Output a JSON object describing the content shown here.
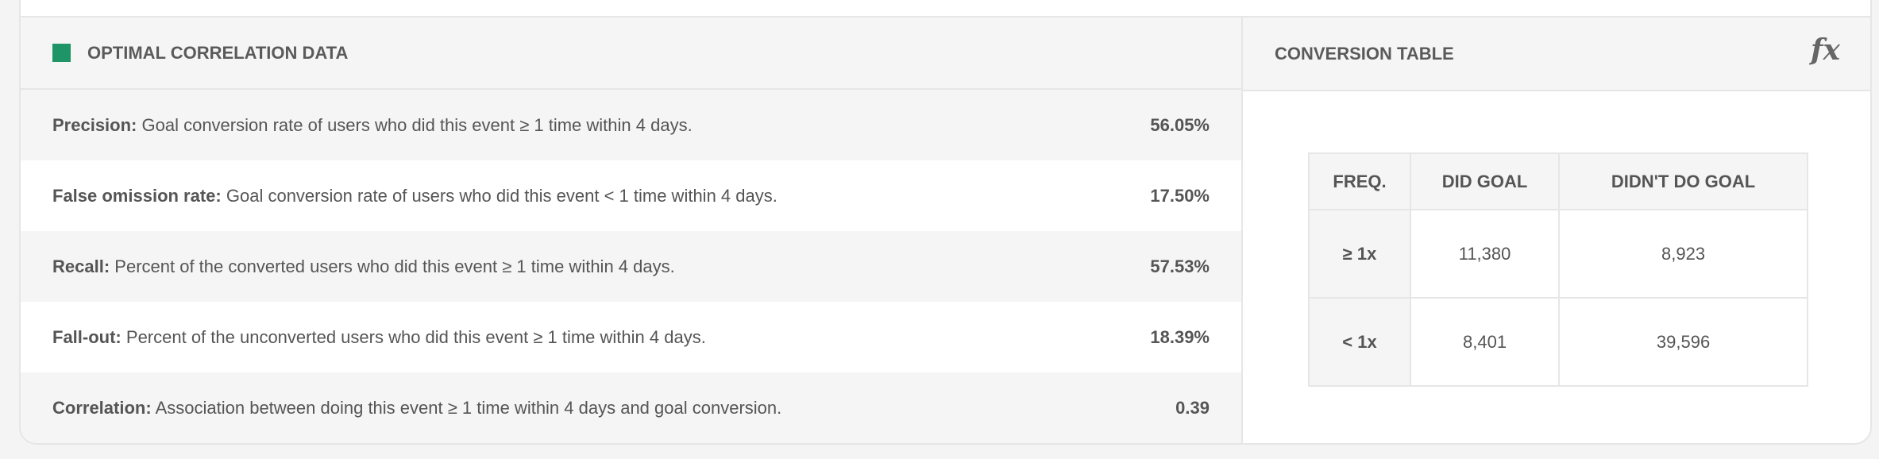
{
  "colors": {
    "accent": "#1f9467"
  },
  "correlation": {
    "title": "OPTIMAL CORRELATION DATA",
    "rows": [
      {
        "label": "Precision:",
        "desc": "Goal conversion rate of users who did this event ≥ 1 time within 4 days.",
        "value": "56.05%"
      },
      {
        "label": "False omission rate:",
        "desc": "Goal conversion rate of users who did this event < 1 time within 4 days.",
        "value": "17.50%"
      },
      {
        "label": "Recall:",
        "desc": "Percent of the converted users who did this event ≥ 1 time within 4 days.",
        "value": "57.53%"
      },
      {
        "label": "Fall-out:",
        "desc": "Percent of the unconverted users who did this event ≥ 1 time within 4 days.",
        "value": "18.39%"
      },
      {
        "label": "Correlation:",
        "desc": "Association between doing this event ≥ 1 time within 4 days and goal conversion.",
        "value": "0.39"
      }
    ]
  },
  "conversion": {
    "title": "CONVERSION TABLE",
    "icon": "fx-icon",
    "icon_text": "fx",
    "headers": [
      "FREQ.",
      "DID GOAL",
      "DIDN'T DO GOAL"
    ],
    "rows": [
      {
        "freq": "≥ 1x",
        "did": "11,380",
        "didnt": "8,923"
      },
      {
        "freq": "< 1x",
        "did": "8,401",
        "didnt": "39,596"
      }
    ]
  }
}
